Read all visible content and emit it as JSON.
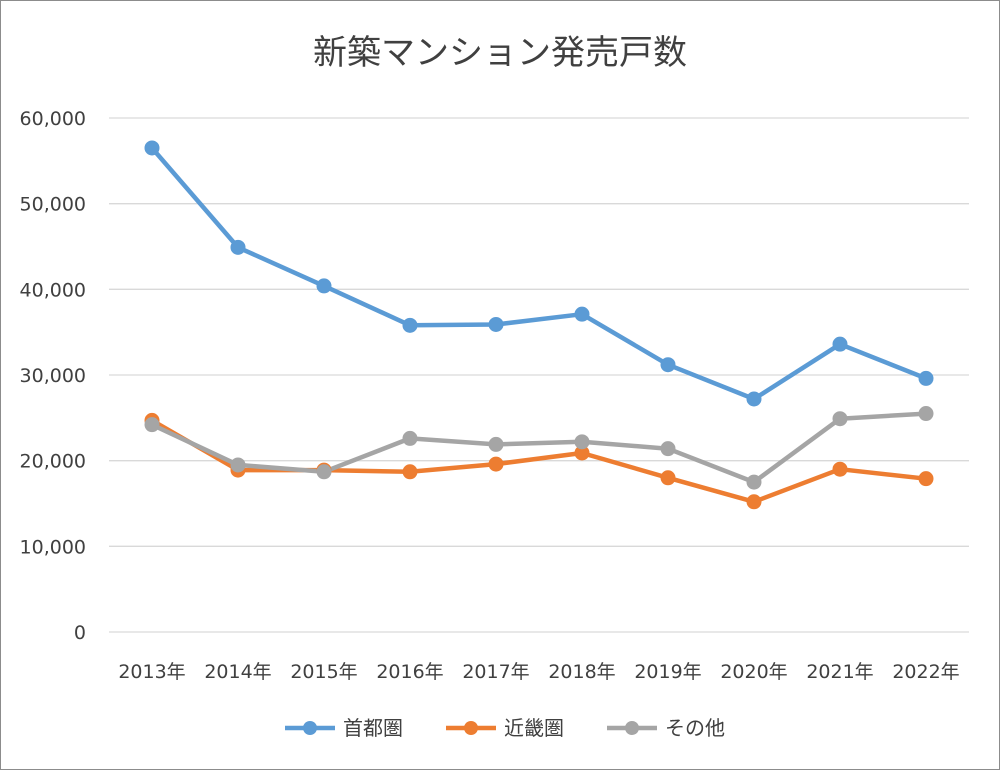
{
  "chart_data": {
    "type": "line",
    "title": "新築マンション発売戸数",
    "xlabel": "",
    "ylabel": "",
    "categories": [
      "2013年",
      "2014年",
      "2015年",
      "2016年",
      "2017年",
      "2018年",
      "2019年",
      "2020年",
      "2021年",
      "2022年"
    ],
    "ylim": [
      0,
      60000
    ],
    "yticks": [
      0,
      10000,
      20000,
      30000,
      40000,
      50000,
      60000
    ],
    "ytick_labels": [
      "0",
      "10,000",
      "20,000",
      "30,000",
      "40,000",
      "50,000",
      "60,000"
    ],
    "grid": true,
    "legend_position": "bottom",
    "series": [
      {
        "name": "首都圏",
        "color": "#5b9bd5",
        "values": [
          56500,
          44900,
          40400,
          35800,
          35900,
          37100,
          31200,
          27200,
          33600,
          29600
        ]
      },
      {
        "name": "近畿圏",
        "color": "#ed7d31",
        "values": [
          24700,
          18900,
          18900,
          18700,
          19600,
          20900,
          18000,
          15200,
          19000,
          17900
        ]
      },
      {
        "name": "その他",
        "color": "#a5a5a5",
        "values": [
          24200,
          19500,
          18700,
          22600,
          21900,
          22200,
          21400,
          17500,
          24900,
          25500
        ]
      }
    ]
  }
}
